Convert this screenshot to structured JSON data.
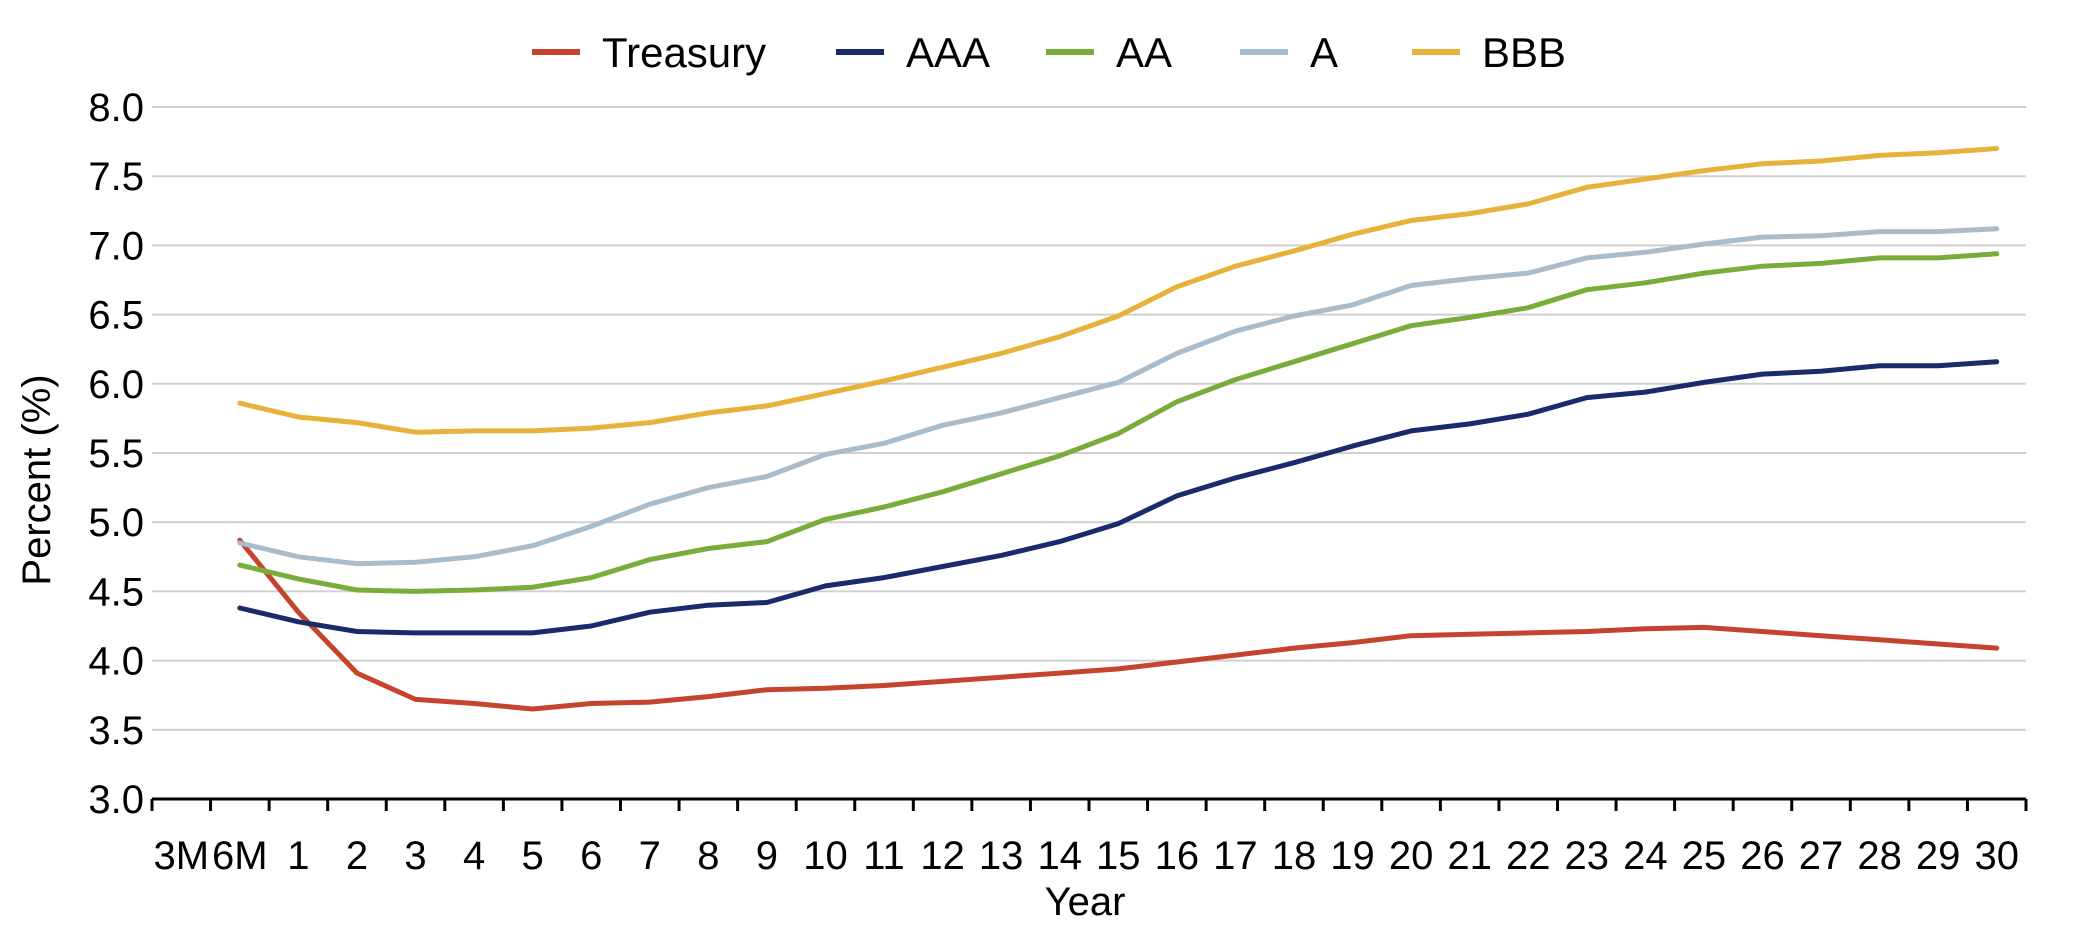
{
  "chart_data": {
    "type": "line",
    "xlabel": "Year",
    "ylabel": "Percent (%)",
    "ylim": [
      3.0,
      8.0
    ],
    "y_ticks": [
      "8.0",
      "7.5",
      "7.0",
      "6.5",
      "6.0",
      "5.5",
      "5.0",
      "4.5",
      "4.0",
      "3.5",
      "3.0"
    ],
    "x_ticks": [
      "3M",
      "6M",
      "1",
      "2",
      "3",
      "4",
      "5",
      "6",
      "7",
      "8",
      "9",
      "10",
      "11",
      "12",
      "13",
      "14",
      "15",
      "16",
      "17",
      "18",
      "19",
      "20",
      "21",
      "22",
      "23",
      "24",
      "25",
      "26",
      "27",
      "28",
      "29",
      "30"
    ],
    "grid": "horizontal",
    "legend_position": "top",
    "series": [
      {
        "name": "Treasury",
        "color": "#c6432e",
        "x_start": "6M",
        "values": [
          4.87,
          4.35,
          3.91,
          3.72,
          3.69,
          3.65,
          3.69,
          3.7,
          3.74,
          3.79,
          3.8,
          3.82,
          3.85,
          3.88,
          3.91,
          3.94,
          3.99,
          4.04,
          4.09,
          4.13,
          4.18,
          4.19,
          4.2,
          4.21,
          4.23,
          4.24,
          4.21,
          4.18,
          4.15,
          4.12,
          4.09
        ]
      },
      {
        "name": "AAA",
        "color": "#1b2a6b",
        "x_start": "6M",
        "values": [
          4.38,
          4.28,
          4.21,
          4.2,
          4.2,
          4.2,
          4.25,
          4.35,
          4.4,
          4.42,
          4.54,
          4.6,
          4.68,
          4.76,
          4.86,
          4.99,
          5.19,
          5.32,
          5.43,
          5.55,
          5.66,
          5.71,
          5.78,
          5.9,
          5.94,
          6.01,
          6.07,
          6.09,
          6.13,
          6.13,
          6.16
        ]
      },
      {
        "name": "AA",
        "color": "#78ac3b",
        "x_start": "6M",
        "values": [
          4.69,
          4.59,
          4.51,
          4.5,
          4.51,
          4.53,
          4.6,
          4.73,
          4.81,
          4.86,
          5.02,
          5.11,
          5.22,
          5.35,
          5.48,
          5.64,
          5.87,
          6.03,
          6.16,
          6.29,
          6.42,
          6.48,
          6.55,
          6.68,
          6.73,
          6.8,
          6.85,
          6.87,
          6.91,
          6.91,
          6.94
        ]
      },
      {
        "name": "A",
        "color": "#a9bccb",
        "x_start": "6M",
        "values": [
          4.85,
          4.75,
          4.7,
          4.71,
          4.75,
          4.83,
          4.97,
          5.13,
          5.25,
          5.33,
          5.49,
          5.57,
          5.7,
          5.79,
          5.9,
          6.01,
          6.22,
          6.38,
          6.49,
          6.57,
          6.71,
          6.76,
          6.8,
          6.91,
          6.95,
          7.01,
          7.06,
          7.07,
          7.1,
          7.1,
          7.12
        ]
      },
      {
        "name": "BBB",
        "color": "#e6b23a",
        "x_start": "6M",
        "values": [
          5.86,
          5.76,
          5.72,
          5.65,
          5.66,
          5.66,
          5.68,
          5.72,
          5.79,
          5.84,
          5.93,
          6.02,
          6.12,
          6.22,
          6.34,
          6.49,
          6.7,
          6.85,
          6.96,
          7.08,
          7.18,
          7.23,
          7.3,
          7.42,
          7.48,
          7.54,
          7.59,
          7.61,
          7.65,
          7.67,
          7.7
        ]
      }
    ]
  }
}
